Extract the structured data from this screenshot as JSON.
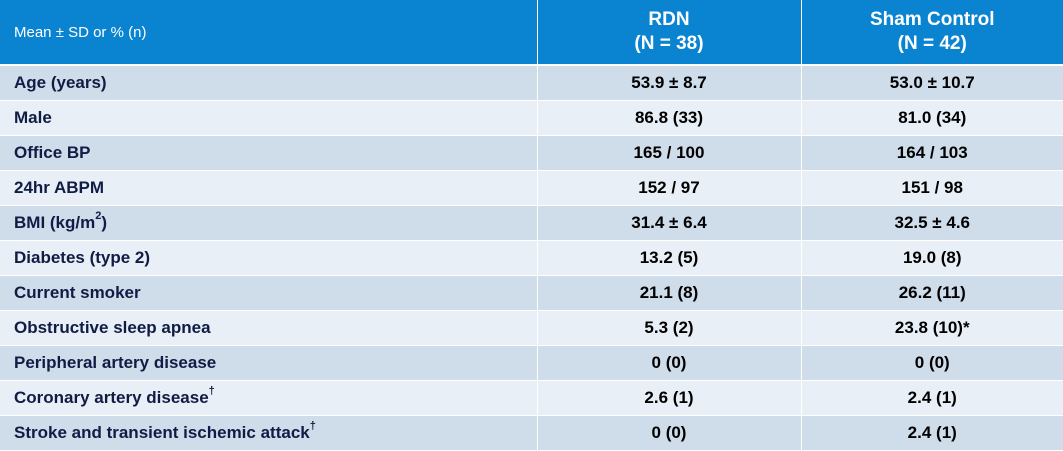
{
  "header": {
    "label": "Mean ± SD or % (n)",
    "groups": [
      {
        "name": "RDN",
        "n": "(N = 38)"
      },
      {
        "name": "Sham Control",
        "n": "(N = 42)"
      }
    ]
  },
  "rows": [
    {
      "label": "Age (years)",
      "rdn": "53.9 ± 8.7",
      "sham": "53.0 ± 10.7"
    },
    {
      "label": "Male",
      "rdn": "86.8  (33)",
      "sham": "81.0  (34)"
    },
    {
      "label": "Office BP",
      "rdn": "165 / 100",
      "sham": "164 / 103"
    },
    {
      "label": "24hr ABPM",
      "rdn": "152 / 97",
      "sham": "151 / 98"
    },
    {
      "label": "BMI (kg/m",
      "label_sup": "2",
      "label_after": ")",
      "rdn": "31.4 ± 6.4",
      "sham": "32.5 ± 4.6"
    },
    {
      "label": "Diabetes (type 2)",
      "rdn": "13.2  (5)",
      "sham": "19.0  (8)"
    },
    {
      "label": "Current smoker",
      "rdn": "21.1  (8)",
      "sham": "26.2  (11)"
    },
    {
      "label": "Obstructive sleep apnea",
      "rdn": "5.3  (2)",
      "sham": "23.8  (10)*"
    },
    {
      "label": "Peripheral artery disease",
      "rdn": "0  (0)",
      "sham": "0  (0)"
    },
    {
      "label": "Coronary artery disease",
      "label_sup": "†",
      "rdn": "2.6  (1)",
      "sham": "2.4  (1)"
    },
    {
      "label": "Stroke and transient ischemic attack",
      "label_sup": "†",
      "rdn": "0  (0)",
      "sham": "2.4  (1)"
    }
  ],
  "colors": {
    "header_bg": "#0a84d0",
    "row_dark": "#cfdcea",
    "row_light": "#e9eff6",
    "label_text": "#101c44"
  }
}
